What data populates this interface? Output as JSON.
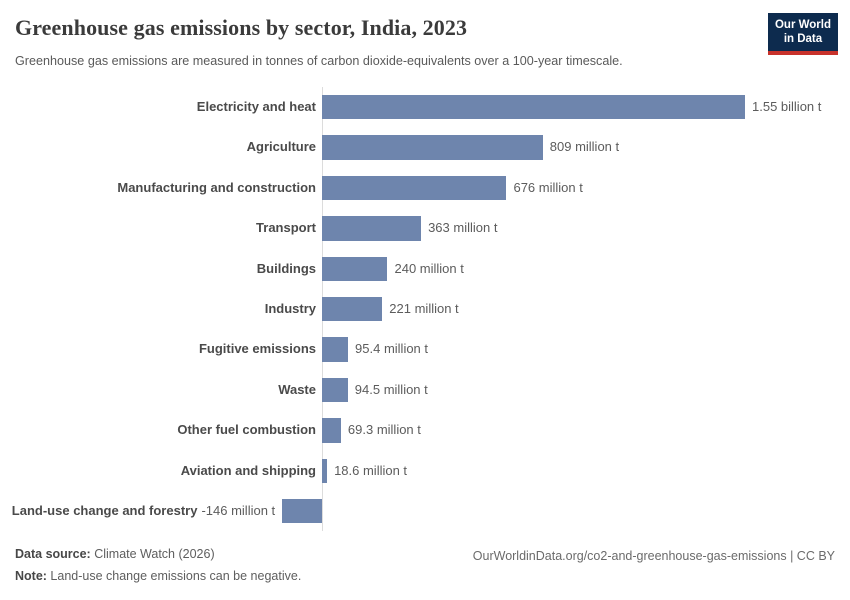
{
  "header": {
    "logo_line1": "Our World",
    "logo_line2": "in Data"
  },
  "chart_data": {
    "type": "bar",
    "orientation": "horizontal",
    "title": "Greenhouse gas emissions by sector, India, 2023",
    "subtitle": "Greenhouse gas emissions are measured in tonnes of carbon dioxide-equivalents over a 100-year timescale.",
    "unit": "tonnes of CO2-equivalents",
    "categories": [
      "Electricity and heat",
      "Agriculture",
      "Manufacturing and construction",
      "Transport",
      "Buildings",
      "Industry",
      "Fugitive emissions",
      "Waste",
      "Other fuel combustion",
      "Aviation and shipping",
      "Land-use change and forestry"
    ],
    "values_million_t": [
      1550,
      809,
      676,
      363,
      240,
      221,
      95.4,
      94.5,
      69.3,
      18.6,
      -146
    ],
    "value_labels": [
      "1.55 billion t",
      "809 million t",
      "676 million t",
      "363 million t",
      "240 million t",
      "221 million t",
      "95.4 million t",
      "94.5 million t",
      "69.3 million t",
      "18.6 million t",
      "-146 million t"
    ],
    "xlim_million_t": [
      -146,
      1550
    ],
    "grid": false,
    "legend": "none",
    "bar_color": "#6e85ad",
    "axis_line_color": "#dcdcdc"
  },
  "footer": {
    "datasource_label": "Data source:",
    "datasource_value": " Climate Watch (2026)",
    "note_label": "Note:",
    "note_value": " Land-use change emissions can be negative.",
    "citation": "OurWorldinData.org/co2-and-greenhouse-gas-emissions | CC BY"
  },
  "colors": {
    "bar": "#6e85ad",
    "logo_navy": "#0d2b4e",
    "logo_red": "#c8322b",
    "title_text": "#3b3b3b",
    "subtitle_text": "#5a5a5a"
  }
}
